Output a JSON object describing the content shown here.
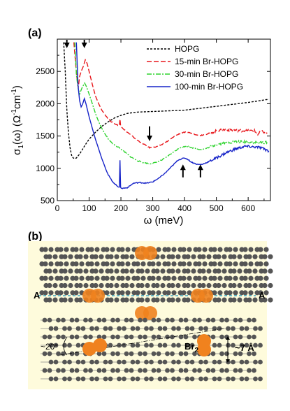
{
  "panel_a": {
    "label": "(a)",
    "chart_data": {
      "type": "line",
      "xlabel": "ω (meV)",
      "ylabel_main": "σ",
      "ylabel_sub": "1",
      "ylabel_rest": "(ω) (Ω",
      "ylabel_unit": "cm",
      "xlim": [
        0,
        670
      ],
      "ylim": [
        500,
        3000
      ],
      "x_ticks": [
        0,
        100,
        200,
        300,
        400,
        500,
        600
      ],
      "y_ticks": [
        500,
        1000,
        1500,
        2000,
        2500
      ],
      "legend_position": "top-right",
      "series": [
        {
          "name": "HOPG",
          "color": "#000000",
          "dash": "3,2",
          "points": [
            [
              20,
              2950
            ],
            [
              25,
              2500
            ],
            [
              30,
              1900
            ],
            [
              35,
              1550
            ],
            [
              40,
              1320
            ],
            [
              45,
              1200
            ],
            [
              50,
              1160
            ],
            [
              55,
              1150
            ],
            [
              60,
              1160
            ],
            [
              70,
              1220
            ],
            [
              80,
              1300
            ],
            [
              90,
              1380
            ],
            [
              100,
              1450
            ],
            [
              120,
              1560
            ],
            [
              140,
              1650
            ],
            [
              160,
              1720
            ],
            [
              180,
              1780
            ],
            [
              200,
              1820
            ],
            [
              220,
              1850
            ],
            [
              250,
              1870
            ],
            [
              300,
              1880
            ],
            [
              350,
              1890
            ],
            [
              400,
              1900
            ],
            [
              450,
              1930
            ],
            [
              500,
              1960
            ],
            [
              550,
              1990
            ],
            [
              600,
              2020
            ],
            [
              640,
              2050
            ],
            [
              665,
              2070
            ]
          ]
        },
        {
          "name": "15-min Br-HOPG",
          "color": "#e8161b",
          "dash": "7,3",
          "points": [
            [
              52,
              2950
            ],
            [
              58,
              2600
            ],
            [
              62,
              2400
            ],
            [
              66,
              2250
            ],
            [
              70,
              2420
            ],
            [
              75,
              2500
            ],
            [
              82,
              2580
            ],
            [
              88,
              2680
            ],
            [
              94,
              2620
            ],
            [
              100,
              2500
            ],
            [
              110,
              2300
            ],
            [
              120,
              2120
            ],
            [
              130,
              2000
            ],
            [
              140,
              1900
            ],
            [
              150,
              1830
            ],
            [
              160,
              1770
            ],
            [
              170,
              1720
            ],
            [
              180,
              1690
            ],
            [
              190,
              1670
            ],
            [
              195,
              1660
            ],
            [
              197,
              1760
            ],
            [
              199,
              1660
            ],
            [
              210,
              1600
            ],
            [
              230,
              1520
            ],
            [
              250,
              1440
            ],
            [
              270,
              1380
            ],
            [
              290,
              1320
            ],
            [
              310,
              1330
            ],
            [
              330,
              1370
            ],
            [
              350,
              1430
            ],
            [
              370,
              1500
            ],
            [
              390,
              1550
            ],
            [
              410,
              1560
            ],
            [
              430,
              1530
            ],
            [
              450,
              1510
            ],
            [
              470,
              1530
            ],
            [
              500,
              1580
            ],
            [
              530,
              1600
            ],
            [
              560,
              1590
            ],
            [
              600,
              1580
            ],
            [
              620,
              1580
            ],
            [
              630,
              1520
            ],
            [
              640,
              1570
            ],
            [
              660,
              1550
            ]
          ]
        },
        {
          "name": "30-min Br-HOPG",
          "color": "#2fd32f",
          "dash": "7,2,2,2",
          "points": [
            [
              55,
              2950
            ],
            [
              60,
              2450
            ],
            [
              65,
              2250
            ],
            [
              70,
              2150
            ],
            [
              78,
              2250
            ],
            [
              86,
              2320
            ],
            [
              92,
              2260
            ],
            [
              100,
              2150
            ],
            [
              110,
              2000
            ],
            [
              120,
              1850
            ],
            [
              130,
              1720
            ],
            [
              140,
              1620
            ],
            [
              150,
              1530
            ],
            [
              160,
              1460
            ],
            [
              170,
              1400
            ],
            [
              180,
              1360
            ],
            [
              190,
              1330
            ],
            [
              195,
              1320
            ],
            [
              200,
              1300
            ],
            [
              210,
              1260
            ],
            [
              230,
              1180
            ],
            [
              250,
              1120
            ],
            [
              270,
              1090
            ],
            [
              290,
              1070
            ],
            [
              310,
              1090
            ],
            [
              330,
              1130
            ],
            [
              350,
              1200
            ],
            [
              370,
              1270
            ],
            [
              390,
              1330
            ],
            [
              410,
              1340
            ],
            [
              430,
              1310
            ],
            [
              450,
              1290
            ],
            [
              470,
              1310
            ],
            [
              500,
              1370
            ],
            [
              530,
              1400
            ],
            [
              560,
              1410
            ],
            [
              600,
              1410
            ],
            [
              630,
              1400
            ],
            [
              660,
              1400
            ]
          ]
        },
        {
          "name": "100-min Br-HOPG",
          "color": "#1623c8",
          "dash": "",
          "points": [
            [
              60,
              2950
            ],
            [
              65,
              2300
            ],
            [
              70,
              2050
            ],
            [
              75,
              1950
            ],
            [
              80,
              2000
            ],
            [
              85,
              2080
            ],
            [
              90,
              2000
            ],
            [
              100,
              1800
            ],
            [
              110,
              1620
            ],
            [
              120,
              1450
            ],
            [
              130,
              1300
            ],
            [
              140,
              1150
            ],
            [
              150,
              1020
            ],
            [
              160,
              900
            ],
            [
              170,
              820
            ],
            [
              180,
              760
            ],
            [
              190,
              720
            ],
            [
              195,
              710
            ],
            [
              197,
              1120
            ],
            [
              199,
              700
            ],
            [
              205,
              690
            ],
            [
              220,
              700
            ],
            [
              240,
              770
            ],
            [
              260,
              780
            ],
            [
              280,
              770
            ],
            [
              300,
              790
            ],
            [
              320,
              850
            ],
            [
              340,
              930
            ],
            [
              360,
              1030
            ],
            [
              380,
              1130
            ],
            [
              400,
              1160
            ],
            [
              410,
              1140
            ],
            [
              420,
              1100
            ],
            [
              440,
              1060
            ],
            [
              455,
              1060
            ],
            [
              470,
              1090
            ],
            [
              500,
              1160
            ],
            [
              530,
              1240
            ],
            [
              560,
              1300
            ],
            [
              590,
              1340
            ],
            [
              620,
              1330
            ],
            [
              640,
              1320
            ],
            [
              665,
              1270
            ]
          ]
        }
      ],
      "arrows_down_at": [
        [
          30,
          2990,
          2860
        ],
        [
          85,
          2990,
          2860
        ],
        [
          290,
          1650,
          1420
        ]
      ],
      "arrows_up_at": [
        [
          395,
          860,
          1060
        ],
        [
          450,
          860,
          1060
        ]
      ]
    }
  },
  "panel_b": {
    "label": "(b)",
    "label_A_left": "A",
    "label_A_right": "A",
    "angle_label": "~20°",
    "br2_label": "Br",
    "br2_sub": "2",
    "spacing_label": "~7 Å",
    "colors": {
      "background": "#fefbdc",
      "carbon": "#555555",
      "bromine": "#f0821e",
      "dashed_line": "#3aa8c4"
    }
  }
}
